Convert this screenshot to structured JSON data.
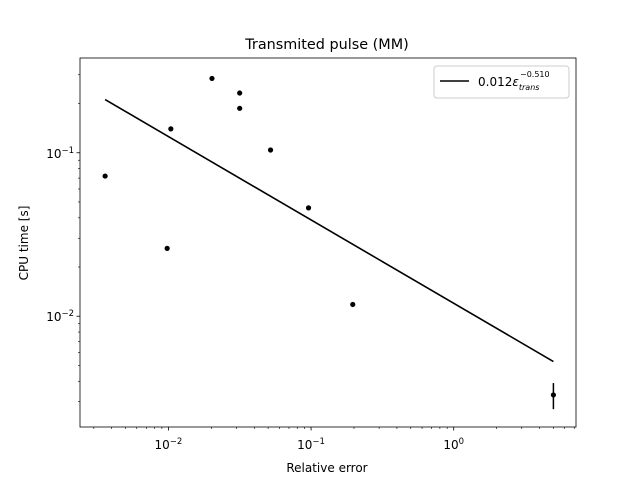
{
  "chart_data": {
    "type": "scatter",
    "title": "Transmited pulse (MM)",
    "xlabel": "Relative error",
    "ylabel": "CPU time [s]",
    "xscale": "log",
    "yscale": "log",
    "xlim": [
      0.0024,
      7.2
    ],
    "ylim": [
      0.0021,
      0.38
    ],
    "xticks": [
      {
        "value": 0.01,
        "base": "10",
        "exp": "−2"
      },
      {
        "value": 0.1,
        "base": "10",
        "exp": "−1"
      },
      {
        "value": 1,
        "base": "10",
        "exp": "0"
      }
    ],
    "yticks": [
      {
        "value": 0.01,
        "base": "10",
        "exp": "−2"
      },
      {
        "value": 0.1,
        "base": "10",
        "exp": "−1"
      }
    ],
    "points": [
      {
        "x": 0.0036,
        "y": 0.072
      },
      {
        "x": 0.0098,
        "y": 0.026
      },
      {
        "x": 0.0104,
        "y": 0.14
      },
      {
        "x": 0.0202,
        "y": 0.285
      },
      {
        "x": 0.0316,
        "y": 0.232
      },
      {
        "x": 0.0316,
        "y": 0.187
      },
      {
        "x": 0.052,
        "y": 0.104
      },
      {
        "x": 0.096,
        "y": 0.046
      },
      {
        "x": 0.196,
        "y": 0.0118
      },
      {
        "x": 5.0,
        "y": 0.0033,
        "yerr_low": 0.0027,
        "yerr_high": 0.0039
      }
    ],
    "fit": {
      "coef": 0.012,
      "exponent": -0.51,
      "x_range": [
        0.0036,
        5.0
      ],
      "label": {
        "prefix": "0.012",
        "symbol": "ε",
        "subscript": "trans",
        "superscript": "−0.510"
      }
    },
    "legend_position": "top-right",
    "grid": false,
    "colors": {
      "series": "#000000",
      "axes": "#000000",
      "legend_border": "#cccccc"
    }
  }
}
